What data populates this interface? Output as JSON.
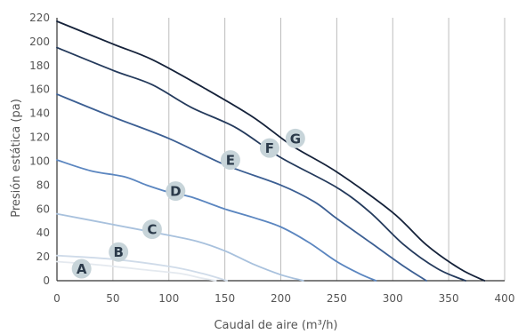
{
  "chart_data": {
    "type": "line",
    "xlabel": "Caudal de aire (m³/h)",
    "ylabel": "Presión estática (pa)",
    "xlim": [
      0,
      400
    ],
    "ylim": [
      0,
      220
    ],
    "xticks": [
      0,
      50,
      100,
      150,
      200,
      250,
      300,
      350,
      400
    ],
    "yticks": [
      0,
      20,
      40,
      60,
      80,
      100,
      120,
      140,
      160,
      180,
      200,
      220
    ],
    "grid": "vertical",
    "legend": "none",
    "series": [
      {
        "name": "A",
        "color": "#e4e9ef",
        "label_at": [
          22,
          10
        ],
        "points": [
          [
            0,
            16
          ],
          [
            40,
            13
          ],
          [
            80,
            9
          ],
          [
            110,
            6
          ],
          [
            130,
            2
          ],
          [
            142,
            0
          ]
        ]
      },
      {
        "name": "B",
        "color": "#cfdbe9",
        "label_at": [
          55,
          24
        ],
        "points": [
          [
            0,
            21
          ],
          [
            50,
            18
          ],
          [
            100,
            12
          ],
          [
            130,
            6
          ],
          [
            152,
            0
          ]
        ]
      },
      {
        "name": "C",
        "color": "#a8c1dd",
        "label_at": [
          85,
          43
        ],
        "points": [
          [
            0,
            56
          ],
          [
            50,
            47
          ],
          [
            100,
            38
          ],
          [
            125,
            33
          ],
          [
            150,
            25
          ],
          [
            175,
            14
          ],
          [
            200,
            5
          ],
          [
            220,
            0
          ]
        ]
      },
      {
        "name": "D",
        "color": "#5b86c0",
        "label_at": [
          106,
          75
        ],
        "points": [
          [
            0,
            101
          ],
          [
            30,
            92
          ],
          [
            60,
            87
          ],
          [
            80,
            80
          ],
          [
            100,
            74
          ],
          [
            120,
            70
          ],
          [
            150,
            60
          ],
          [
            175,
            53
          ],
          [
            200,
            45
          ],
          [
            225,
            32
          ],
          [
            250,
            16
          ],
          [
            270,
            6
          ],
          [
            285,
            0
          ]
        ]
      },
      {
        "name": "E",
        "color": "#3c5f93",
        "label_at": [
          155,
          101
        ],
        "points": [
          [
            0,
            156
          ],
          [
            50,
            137
          ],
          [
            100,
            119
          ],
          [
            150,
            97
          ],
          [
            200,
            80
          ],
          [
            230,
            66
          ],
          [
            250,
            52
          ],
          [
            280,
            32
          ],
          [
            310,
            12
          ],
          [
            330,
            0
          ]
        ]
      },
      {
        "name": "F",
        "color": "#243a5c",
        "label_at": [
          190,
          111
        ],
        "points": [
          [
            0,
            195
          ],
          [
            50,
            176
          ],
          [
            85,
            164
          ],
          [
            120,
            145
          ],
          [
            160,
            128
          ],
          [
            200,
            103
          ],
          [
            250,
            78
          ],
          [
            280,
            57
          ],
          [
            310,
            30
          ],
          [
            340,
            10
          ],
          [
            365,
            0
          ]
        ]
      },
      {
        "name": "G",
        "color": "#15223a",
        "label_at": [
          213,
          119
        ],
        "points": [
          [
            0,
            217
          ],
          [
            50,
            198
          ],
          [
            85,
            185
          ],
          [
            130,
            162
          ],
          [
            175,
            137
          ],
          [
            210,
            113
          ],
          [
            250,
            91
          ],
          [
            300,
            57
          ],
          [
            330,
            30
          ],
          [
            360,
            10
          ],
          [
            382,
            0
          ]
        ]
      }
    ]
  }
}
